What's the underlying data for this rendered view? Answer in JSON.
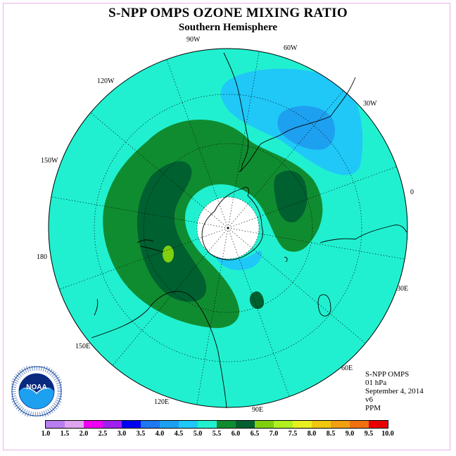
{
  "title": "S-NPP OMPS OZONE MIXING RATIO",
  "subtitle": "Southern Hemisphere",
  "longitude_labels": {
    "w90": "90W",
    "w60": "60W",
    "w30": "30W",
    "w120": "120W",
    "w150": "150W",
    "e0": "0",
    "w180": "180",
    "e30": "30E",
    "e150": "150E",
    "e60": "60E",
    "e120": "120E",
    "e90": "90E"
  },
  "info": {
    "instrument": "S-NPP OMPS",
    "level": "01 hPa",
    "date": "September 4, 2014",
    "version": "v6",
    "units": "PPM"
  },
  "logo": {
    "text": "NOAA",
    "ring_text": "NATIONAL OCEANIC AND ATMOSPHERIC ADMINISTRATION · U.S. DEPARTMENT OF COMMERCE"
  },
  "colorbar": {
    "colors": [
      "#b87ef0",
      "#e0a3f0",
      "#f000f0",
      "#a020f0",
      "#0000f0",
      "#1e78f0",
      "#1ea0f0",
      "#20c8f8",
      "#20f0d0",
      "#108c30",
      "#006030",
      "#80d010",
      "#b0f020",
      "#e8f020",
      "#f0c810",
      "#f0a010",
      "#f07010",
      "#e80000",
      "#b00000",
      "#805030"
    ],
    "ticks": [
      "1.0",
      "1.5",
      "2.0",
      "2.5",
      "3.0",
      "3.5",
      "4.0",
      "4.5",
      "5.0",
      "5.5",
      "6.0",
      "6.5",
      "7.0",
      "7.5",
      "8.0",
      "8.5",
      "9.0",
      "9.5",
      "10.0"
    ]
  },
  "map_colors": {
    "background": "#20f0d0",
    "band_6": "#108c30",
    "band_6_5": "#006030",
    "band_4_5": "#20c8f8",
    "band_4": "#1ea0f0",
    "band_7": "#80d010",
    "pole": "#ffffff"
  }
}
